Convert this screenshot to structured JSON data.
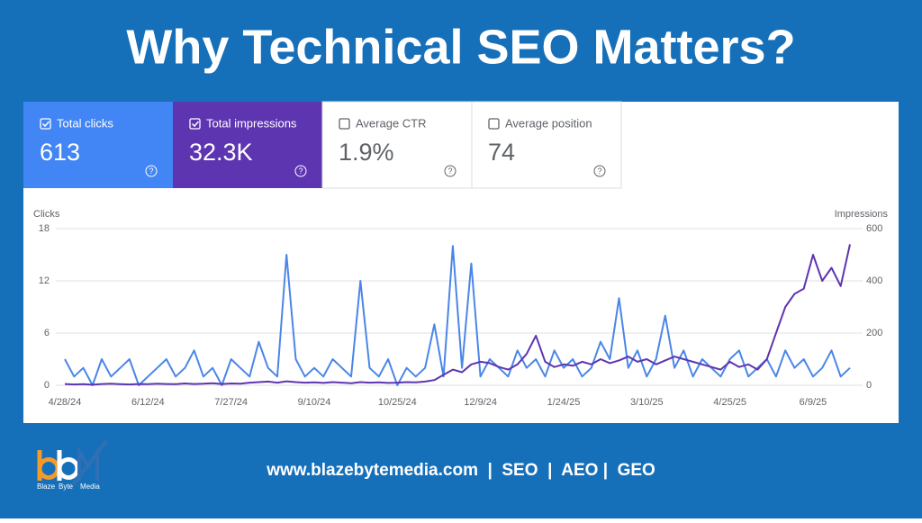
{
  "header": {
    "title": "Why Technical SEO Matters?"
  },
  "cards": [
    {
      "label": "Total clicks",
      "value": "613",
      "checked": true,
      "color": "#4285f4"
    },
    {
      "label": "Total impressions",
      "value": "32.3K",
      "checked": true,
      "color": "#5e35b1"
    },
    {
      "label": "Average CTR",
      "value": "1.9%",
      "checked": false,
      "color": "#ffffff"
    },
    {
      "label": "Average position",
      "value": "74",
      "checked": false,
      "color": "#ffffff"
    }
  ],
  "help_icon": "?",
  "chart_data": {
    "type": "line",
    "ylabel": "Clicks",
    "y2label": "Impressions",
    "categories": [
      "4/28/24",
      null,
      null,
      null,
      null,
      null,
      null,
      null,
      null,
      "6/12/24",
      null,
      null,
      null,
      null,
      null,
      null,
      null,
      null,
      "7/27/24",
      null,
      null,
      null,
      null,
      null,
      null,
      null,
      null,
      "9/10/24",
      null,
      null,
      null,
      null,
      null,
      null,
      null,
      null,
      "10/25/24",
      null,
      null,
      null,
      null,
      null,
      null,
      null,
      null,
      "12/9/24",
      null,
      null,
      null,
      null,
      null,
      null,
      null,
      null,
      "1/24/25",
      null,
      null,
      null,
      null,
      null,
      null,
      null,
      null,
      "3/10/25",
      null,
      null,
      null,
      null,
      null,
      null,
      null,
      null,
      "4/25/25",
      null,
      null,
      null,
      null,
      null,
      null,
      null,
      null,
      "6/9/25",
      null,
      null,
      null,
      null
    ],
    "series": [
      {
        "name": "Clicks",
        "color": "#4a86e8",
        "axis": "y",
        "values": [
          3,
          1,
          2,
          0,
          3,
          1,
          2,
          3,
          0,
          1,
          2,
          3,
          1,
          2,
          4,
          1,
          2,
          0,
          3,
          2,
          1,
          5,
          2,
          1,
          15,
          3,
          1,
          2,
          1,
          3,
          2,
          1,
          12,
          2,
          1,
          3,
          0,
          2,
          1,
          2,
          7,
          1,
          16,
          2,
          14,
          1,
          3,
          2,
          1,
          4,
          2,
          3,
          1,
          4,
          2,
          3,
          1,
          2,
          5,
          3,
          10,
          2,
          4,
          1,
          3,
          8,
          2,
          4,
          1,
          3,
          2,
          1,
          3,
          4,
          1,
          2,
          3,
          1,
          4,
          2,
          3,
          1,
          2,
          4,
          1,
          2
        ]
      },
      {
        "name": "Impressions",
        "color": "#5e35b1",
        "axis": "y2",
        "values": [
          5,
          3,
          4,
          2,
          5,
          6,
          4,
          3,
          5,
          4,
          6,
          5,
          4,
          7,
          5,
          6,
          8,
          5,
          7,
          6,
          10,
          12,
          14,
          10,
          15,
          12,
          10,
          11,
          9,
          12,
          10,
          8,
          12,
          10,
          11,
          9,
          10,
          12,
          11,
          14,
          20,
          40,
          60,
          50,
          80,
          90,
          85,
          70,
          60,
          80,
          120,
          190,
          90,
          70,
          80,
          75,
          90,
          80,
          100,
          85,
          95,
          110,
          90,
          100,
          80,
          95,
          110,
          100,
          90,
          80,
          70,
          60,
          90,
          70,
          80,
          60,
          100,
          200,
          300,
          350,
          370,
          500,
          400,
          450,
          380,
          540
        ]
      }
    ],
    "ylim": [
      0,
      18
    ],
    "yticks": [
      0,
      6,
      12,
      18
    ],
    "y2lim": [
      0,
      600
    ],
    "y2ticks": [
      0,
      200,
      400,
      600
    ],
    "grid": true
  },
  "footer": {
    "text": "www.blazebytemedia.com  |  SEO  |  AEO |  GEO"
  },
  "logo": {
    "words": [
      "Blaze",
      "Byte",
      "Media"
    ]
  }
}
